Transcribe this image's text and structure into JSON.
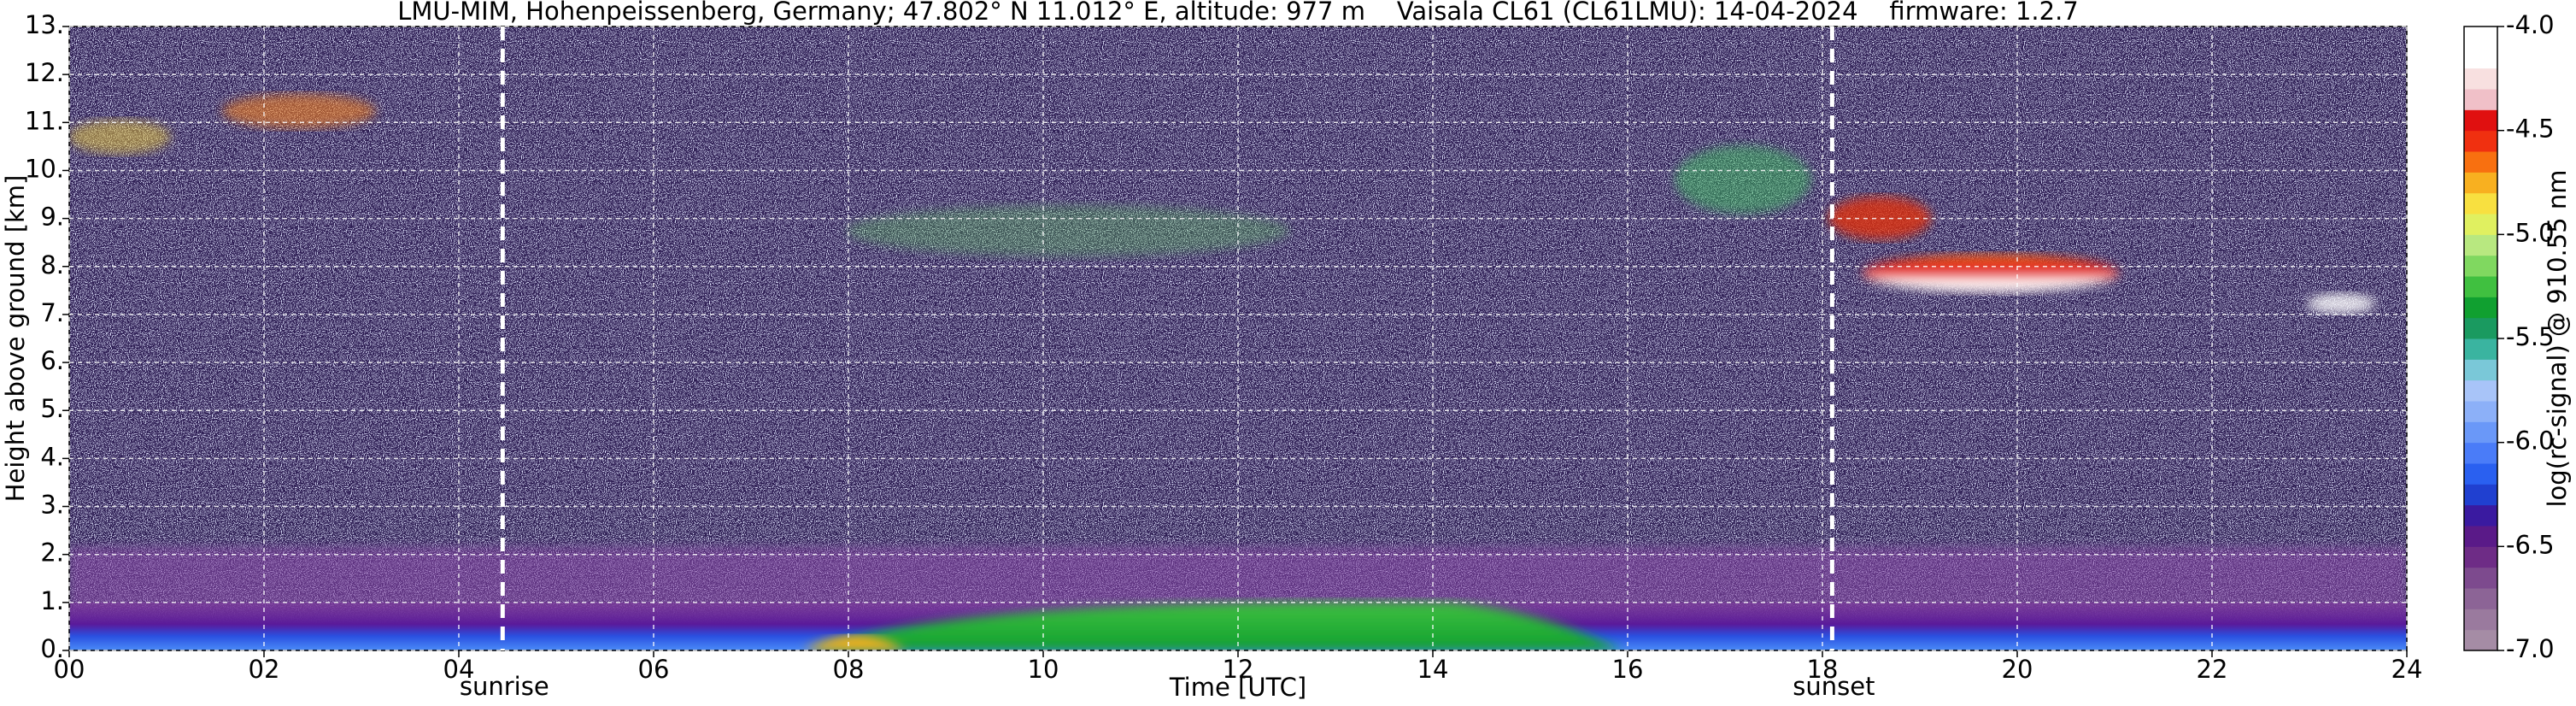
{
  "chart_data": {
    "type": "heatmap",
    "title": "LMU-MIM, Hohenpeissenberg, Germany; 47.802° N 11.012° E, altitude: 977 m    Vaisala CL61 (CL61LMU): 14-04-2024    firmware: 1.2.7",
    "x_label": "Time [UTC]",
    "y_label": "Height above ground [km]",
    "colorbar_label": "log(rc-signal) @ 910.55 nm",
    "xlim": [
      0,
      24
    ],
    "xticks": [
      {
        "value": 0,
        "label": "00"
      },
      {
        "value": 2,
        "label": "02"
      },
      {
        "value": 4,
        "label": "04"
      },
      {
        "value": 6,
        "label": "06"
      },
      {
        "value": 8,
        "label": "08"
      },
      10,
      12,
      14,
      16,
      18,
      20,
      22,
      24
    ],
    "ylim": [
      0,
      13
    ],
    "yticks": [
      {
        "value": 0,
        "label": "0."
      },
      {
        "value": 1,
        "label": "1."
      },
      {
        "value": 2,
        "label": "2."
      },
      {
        "value": 3,
        "label": "3."
      },
      {
        "value": 4,
        "label": "4."
      },
      {
        "value": 5,
        "label": "5."
      },
      {
        "value": 6,
        "label": "6."
      },
      {
        "value": 7,
        "label": "7."
      },
      {
        "value": 8,
        "label": "8."
      },
      {
        "value": 9,
        "label": "9."
      },
      {
        "value": 10,
        "label": "10."
      },
      {
        "value": 11,
        "label": "11."
      },
      {
        "value": 12,
        "label": "12."
      },
      {
        "value": 13,
        "label": "13."
      }
    ],
    "clim": [
      -7,
      -4
    ],
    "cticks": [
      {
        "value": -7,
        "label": "-7.0"
      },
      -6.5,
      {
        "value": -6,
        "label": "-6.0"
      },
      -5.5,
      {
        "value": -5,
        "label": "-5.0"
      },
      -4.5,
      {
        "value": -4,
        "label": "-4.0"
      }
    ],
    "colormap": [
      "#a58ca5",
      "#9a7a9e",
      "#8c6496",
      "#7d4a8e",
      "#6e2c86",
      "#5a1a88",
      "#3a1aa0",
      "#2040d0",
      "#2a60f0",
      "#4a7cf8",
      "#6a98f8",
      "#8cb0f8",
      "#a8c4f8",
      "#7ac8d8",
      "#3ab4a0",
      "#1a9a60",
      "#10a030",
      "#40c040",
      "#80d860",
      "#b8e880",
      "#e0f060",
      "#f8e040",
      "#f8b020",
      "#f87010",
      "#f03010",
      "#e01010",
      "#f0c0c8",
      "#f8e0e0",
      "#ffffff",
      "#ffffff"
    ],
    "grid": true,
    "annotations": [
      {
        "x": 4.45,
        "label": "sunrise"
      },
      {
        "x": 18.1,
        "label": "sunset"
      }
    ]
  }
}
